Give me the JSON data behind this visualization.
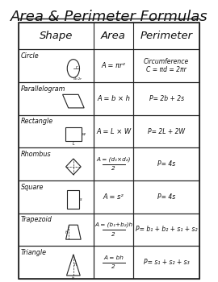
{
  "title": "Area & Perimeter Formulas",
  "columns": [
    "Shape",
    "Area",
    "Perimeter"
  ],
  "rows": [
    {
      "shape": "Circle",
      "area": "A = πr²",
      "area_fraction": false,
      "perimeter": "Circumference\nC = πd = 2πr"
    },
    {
      "shape": "Parallelogram",
      "area": "A = b × h",
      "area_fraction": false,
      "perimeter": "P= 2b + 2s"
    },
    {
      "shape": "Rectangle",
      "area": "A = L × W",
      "area_fraction": false,
      "perimeter": "P= 2L + 2W"
    },
    {
      "shape": "Rhombus",
      "area_num": "(d₁×d₂)",
      "area_den": "2",
      "area": "A = (d₁×d₂)/2",
      "area_fraction": true,
      "perimeter": "P= 4s"
    },
    {
      "shape": "Square",
      "area": "A = s²",
      "area_fraction": false,
      "perimeter": "P= 4s"
    },
    {
      "shape": "Trapezoid",
      "area_num": "(b₁+b₂)h",
      "area_den": "2",
      "area": "A = (b₁+b₂)h/2",
      "area_fraction": true,
      "perimeter": "P= b₁ + b₂ + s₁ + s₂"
    },
    {
      "shape": "Triangle",
      "area_num": "bh",
      "area_den": "2",
      "area": "A = bh/2",
      "area_fraction": true,
      "perimeter": "P= s₁ + s₂ + s₃"
    }
  ],
  "bg_color": "#ffffff",
  "border_color": "#222222",
  "text_color": "#111111",
  "title_color": "#111111",
  "header_font_size": 9.5,
  "cell_font_size": 7.5,
  "title_font_size": 13
}
